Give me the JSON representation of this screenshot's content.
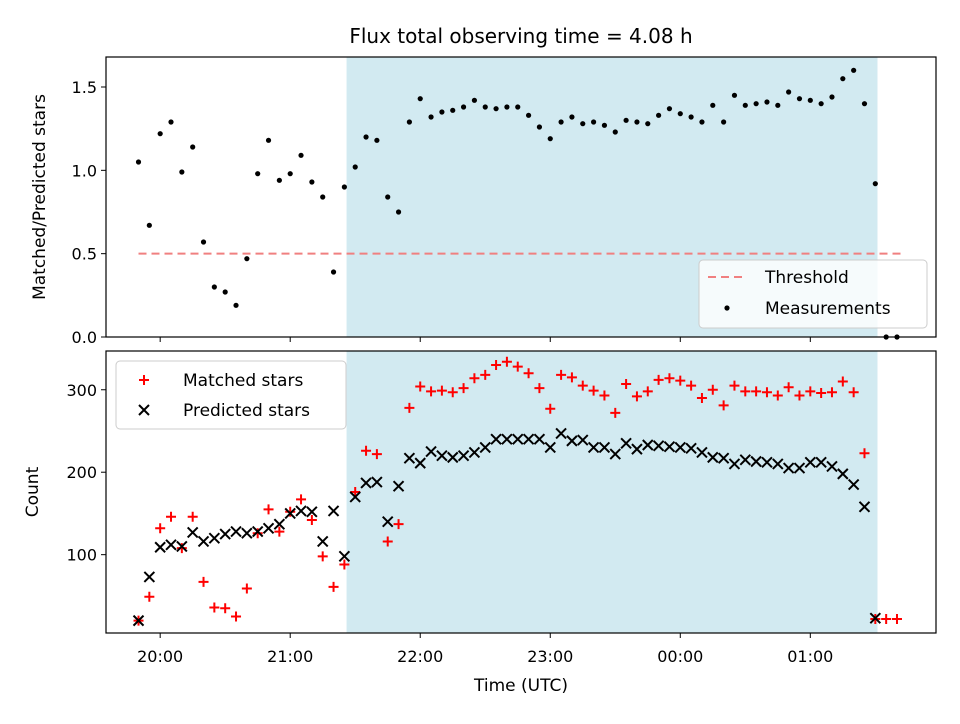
{
  "chart_data": [
    {
      "type": "scatter",
      "title": "Flux total observing time = 4.08 h",
      "xlabel": "",
      "ylabel": "Matched/Predicted stars",
      "ylim": [
        0,
        1.68
      ],
      "yticks": [
        0.0,
        0.5,
        1.0,
        1.5
      ],
      "ytick_labels": [
        "0.0",
        "0.5",
        "1.0",
        "1.5"
      ],
      "shaded_span": {
        "from": "21:26",
        "to": "01:31",
        "color": "#add8e6"
      },
      "threshold": {
        "name": "Threshold",
        "value": 0.5,
        "from": "19:50",
        "to": "01:42",
        "color": "#f08080"
      },
      "legend": {
        "position": "lower right",
        "entries": [
          "Threshold",
          "Measurements"
        ]
      },
      "series": [
        {
          "name": "Measurements",
          "color": "#000000",
          "marker": "dot",
          "x": [
            "19:50",
            "19:55",
            "20:00",
            "20:05",
            "20:10",
            "20:15",
            "20:20",
            "20:25",
            "20:30",
            "20:35",
            "20:40",
            "20:45",
            "20:50",
            "20:55",
            "21:00",
            "21:05",
            "21:10",
            "21:15",
            "21:20",
            "21:25",
            "21:30",
            "21:35",
            "21:40",
            "21:45",
            "21:50",
            "21:55",
            "22:00",
            "22:05",
            "22:10",
            "22:15",
            "22:20",
            "22:25",
            "22:30",
            "22:35",
            "22:40",
            "22:45",
            "22:50",
            "22:55",
            "23:00",
            "23:05",
            "23:10",
            "23:15",
            "23:20",
            "23:25",
            "23:30",
            "23:35",
            "23:40",
            "23:45",
            "23:50",
            "23:55",
            "00:00",
            "00:05",
            "00:10",
            "00:15",
            "00:20",
            "00:25",
            "00:30",
            "00:35",
            "00:40",
            "00:45",
            "00:50",
            "00:55",
            "01:00",
            "01:05",
            "01:10",
            "01:15",
            "01:20",
            "01:25",
            "01:30",
            "01:35",
            "01:40"
          ],
          "y": [
            1.05,
            0.67,
            1.22,
            1.29,
            0.99,
            1.14,
            0.57,
            0.3,
            0.27,
            0.19,
            0.47,
            0.98,
            1.18,
            0.94,
            0.98,
            1.09,
            0.93,
            0.84,
            0.39,
            0.9,
            1.02,
            1.2,
            1.18,
            0.84,
            0.75,
            1.29,
            1.43,
            1.32,
            1.35,
            1.36,
            1.38,
            1.42,
            1.38,
            1.37,
            1.38,
            1.38,
            1.33,
            1.26,
            1.19,
            1.29,
            1.32,
            1.28,
            1.29,
            1.27,
            1.23,
            1.3,
            1.29,
            1.28,
            1.33,
            1.37,
            1.34,
            1.32,
            1.29,
            1.39,
            1.29,
            1.45,
            1.39,
            1.4,
            1.41,
            1.39,
            1.47,
            1.43,
            1.42,
            1.4,
            1.44,
            1.55,
            1.6,
            1.4,
            0.92,
            0.0,
            0.0
          ]
        }
      ]
    },
    {
      "type": "scatter",
      "title": "",
      "xlabel": "Time (UTC)",
      "ylabel": "Count",
      "ylim": [
        5,
        347
      ],
      "yticks": [
        100,
        200,
        300
      ],
      "ytick_labels": [
        "100",
        "200",
        "300"
      ],
      "xticks": [
        "20:00",
        "21:00",
        "22:00",
        "23:00",
        "00:00",
        "01:00"
      ],
      "x_range": [
        "19:35",
        "01:58"
      ],
      "shaded_span": {
        "from": "21:26",
        "to": "01:31",
        "color": "#add8e6"
      },
      "legend": {
        "position": "upper left",
        "entries": [
          "Matched stars",
          "Predicted stars"
        ]
      },
      "series": [
        {
          "name": "Matched stars",
          "color": "#ff0000",
          "marker": "plus",
          "x": [
            "19:50",
            "19:55",
            "20:00",
            "20:05",
            "20:10",
            "20:15",
            "20:20",
            "20:25",
            "20:30",
            "20:35",
            "20:40",
            "20:45",
            "20:50",
            "20:55",
            "21:00",
            "21:05",
            "21:10",
            "21:15",
            "21:20",
            "21:25",
            "21:30",
            "21:35",
            "21:40",
            "21:45",
            "21:50",
            "21:55",
            "22:00",
            "22:05",
            "22:10",
            "22:15",
            "22:20",
            "22:25",
            "22:30",
            "22:35",
            "22:40",
            "22:45",
            "22:50",
            "22:55",
            "23:00",
            "23:05",
            "23:10",
            "23:15",
            "23:20",
            "23:25",
            "23:30",
            "23:35",
            "23:40",
            "23:45",
            "23:50",
            "23:55",
            "00:00",
            "00:05",
            "00:10",
            "00:15",
            "00:20",
            "00:25",
            "00:30",
            "00:35",
            "00:40",
            "00:45",
            "00:50",
            "00:55",
            "01:00",
            "01:05",
            "01:10",
            "01:15",
            "01:20",
            "01:25",
            "01:30",
            "01:35",
            "01:40"
          ],
          "y": [
            20,
            49,
            132,
            146,
            108,
            146,
            67,
            36,
            35,
            25,
            59,
            126,
            155,
            128,
            152,
            167,
            142,
            98,
            61,
            88,
            176,
            226,
            222,
            116,
            137,
            278,
            304,
            298,
            299,
            297,
            302,
            314,
            318,
            330,
            334,
            328,
            320,
            302,
            277,
            318,
            315,
            305,
            299,
            293,
            272,
            307,
            292,
            298,
            312,
            314,
            311,
            305,
            290,
            300,
            281,
            305,
            298,
            298,
            297,
            293,
            303,
            293,
            298,
            296,
            297,
            310,
            297,
            223,
            22,
            22,
            22
          ]
        },
        {
          "name": "Predicted stars",
          "color": "#000000",
          "marker": "x",
          "x": [
            "19:50",
            "19:55",
            "20:00",
            "20:05",
            "20:10",
            "20:15",
            "20:20",
            "20:25",
            "20:30",
            "20:35",
            "20:40",
            "20:45",
            "20:50",
            "20:55",
            "21:00",
            "21:05",
            "21:10",
            "21:15",
            "21:20",
            "21:25",
            "21:30",
            "21:35",
            "21:40",
            "21:45",
            "21:50",
            "21:55",
            "22:00",
            "22:05",
            "22:10",
            "22:15",
            "22:20",
            "22:25",
            "22:30",
            "22:35",
            "22:40",
            "22:45",
            "22:50",
            "22:55",
            "23:00",
            "23:05",
            "23:10",
            "23:15",
            "23:20",
            "23:25",
            "23:30",
            "23:35",
            "23:40",
            "23:45",
            "23:50",
            "23:55",
            "00:00",
            "00:05",
            "00:10",
            "00:15",
            "00:20",
            "00:25",
            "00:30",
            "00:35",
            "00:40",
            "00:45",
            "00:50",
            "00:55",
            "01:00",
            "01:05",
            "01:10",
            "01:15",
            "01:20",
            "01:25",
            "01:30"
          ],
          "y": [
            20,
            73,
            109,
            112,
            110,
            127,
            116,
            120,
            125,
            128,
            126,
            128,
            132,
            137,
            150,
            153,
            152,
            116,
            153,
            98,
            170,
            187,
            188,
            140,
            183,
            217,
            211,
            225,
            220,
            218,
            220,
            224,
            230,
            240,
            240,
            240,
            240,
            240,
            230,
            247,
            238,
            239,
            230,
            230,
            222,
            235,
            228,
            233,
            232,
            231,
            230,
            229,
            224,
            218,
            217,
            210,
            215,
            213,
            212,
            210,
            205,
            205,
            212,
            212,
            207,
            198,
            185,
            158,
            23
          ]
        }
      ]
    }
  ]
}
